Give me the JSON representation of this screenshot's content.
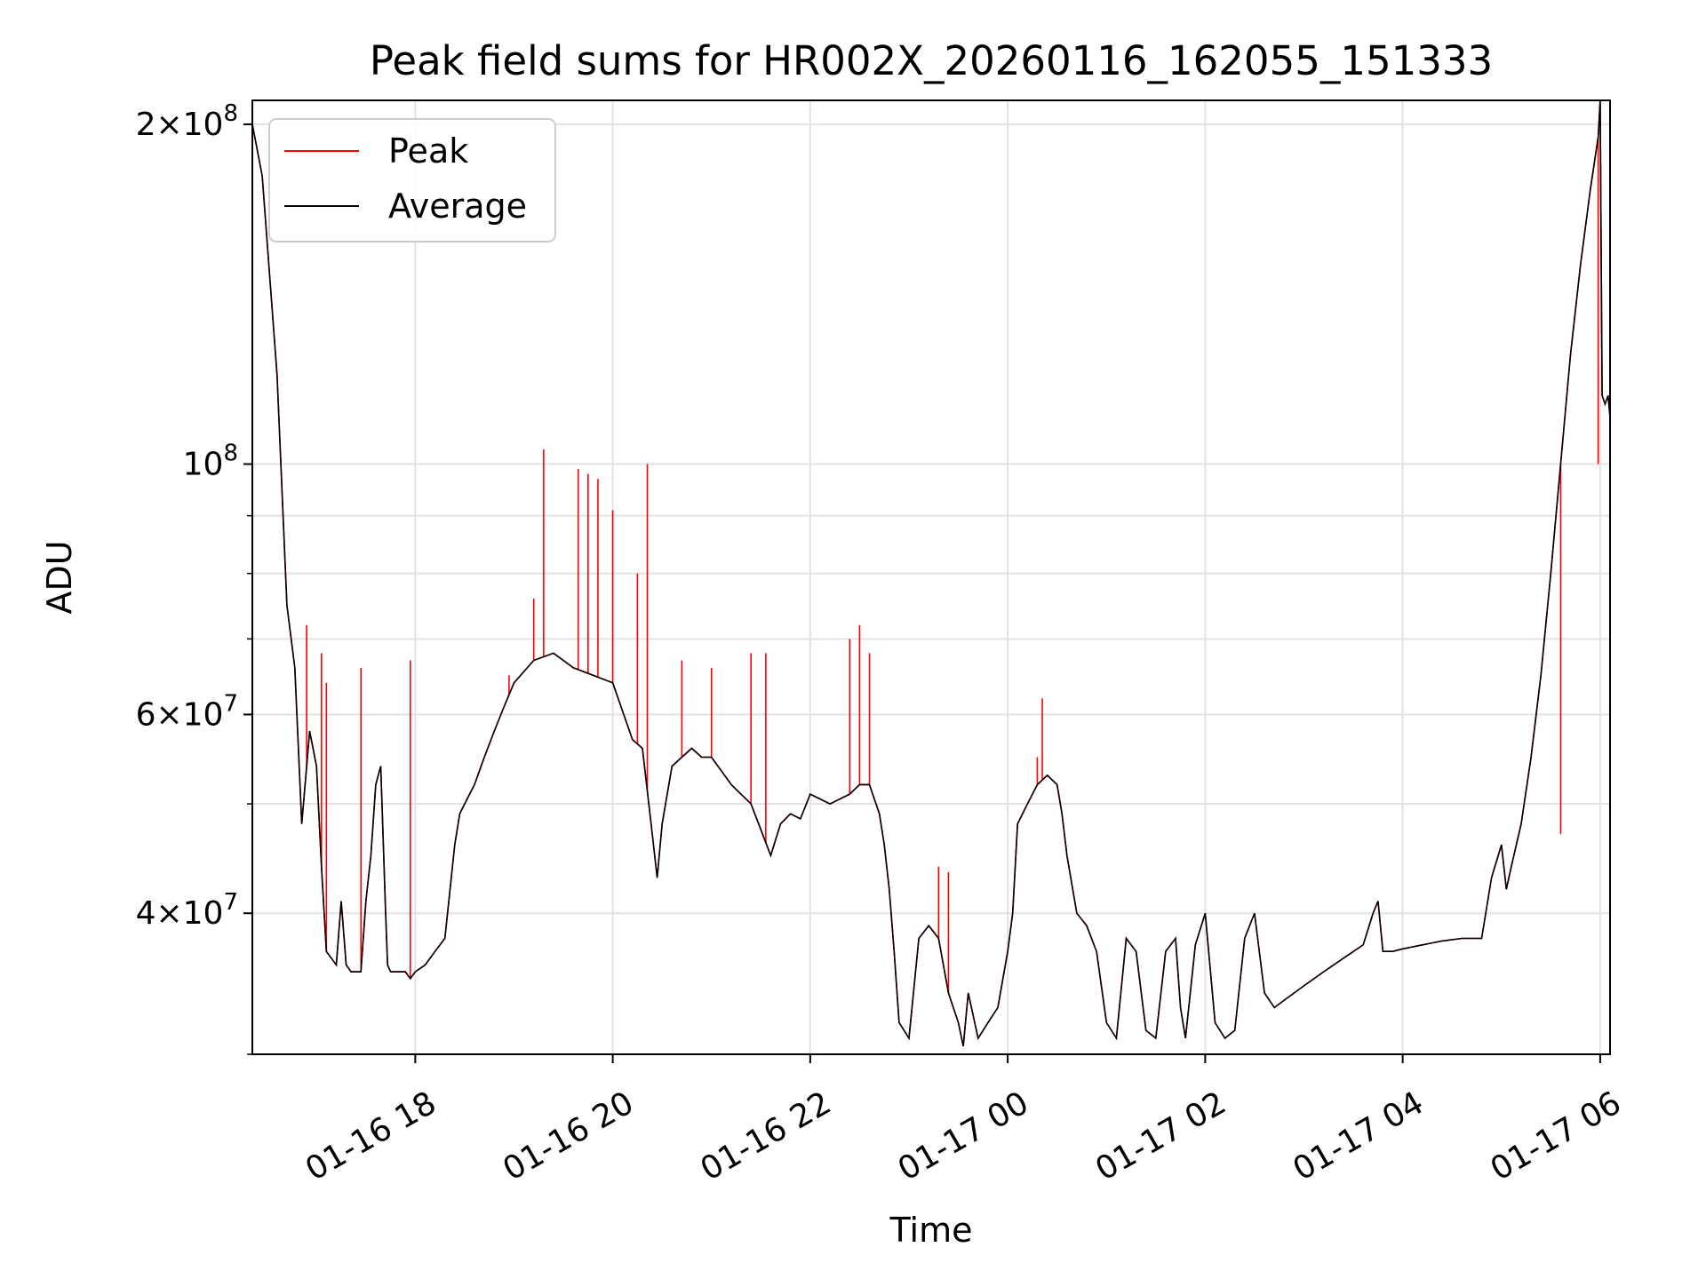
{
  "chart_data": {
    "type": "line",
    "title": "Peak field sums for HR002X_20260116_162055_151333",
    "xlabel": "Time",
    "ylabel": "ADU",
    "yscale": "log",
    "ylim": [
      30000000,
      210000000
    ],
    "xlim_hours": [
      16.35,
      30.1
    ],
    "grid": true,
    "legend": {
      "position": "top-left",
      "entries": [
        "Peak",
        "Average"
      ]
    },
    "x_ticks": [
      {
        "hour": 18,
        "label": "01-16 18"
      },
      {
        "hour": 20,
        "label": "01-16 20"
      },
      {
        "hour": 22,
        "label": "01-16 22"
      },
      {
        "hour": 24,
        "label": "01-17 00"
      },
      {
        "hour": 26,
        "label": "01-17 02"
      },
      {
        "hour": 28,
        "label": "01-17 04"
      },
      {
        "hour": 30,
        "label": "01-17 06"
      }
    ],
    "y_major_ticks": [
      {
        "value": 40000000,
        "mant": "4",
        "exp": "7"
      },
      {
        "value": 60000000,
        "mant": "6",
        "exp": "7"
      },
      {
        "value": 100000000,
        "mant": "",
        "exp": "8"
      },
      {
        "value": 200000000,
        "mant": "2",
        "exp": "8"
      }
    ],
    "y_minor_ticks": [
      30000000,
      50000000,
      70000000,
      80000000,
      90000000
    ],
    "series": [
      {
        "name": "Average",
        "color": "#000000",
        "x_hours": [
          16.35,
          16.45,
          16.6,
          16.7,
          16.78,
          16.85,
          16.93,
          17.0,
          17.05,
          17.1,
          17.15,
          17.2,
          17.25,
          17.3,
          17.35,
          17.45,
          17.5,
          17.55,
          17.6,
          17.65,
          17.7,
          17.72,
          17.75,
          17.8,
          17.9,
          17.95,
          18.0,
          18.1,
          18.2,
          18.3,
          18.4,
          18.45,
          18.5,
          18.6,
          18.7,
          18.8,
          18.9,
          19.0,
          19.2,
          19.4,
          19.6,
          19.8,
          20.0,
          20.2,
          20.3,
          20.4,
          20.45,
          20.5,
          20.6,
          20.7,
          20.8,
          20.9,
          21.0,
          21.2,
          21.4,
          21.6,
          21.7,
          21.8,
          21.9,
          22.0,
          22.2,
          22.4,
          22.5,
          22.6,
          22.7,
          22.75,
          22.8,
          22.85,
          22.9,
          23.0,
          23.1,
          23.2,
          23.3,
          23.4,
          23.5,
          23.55,
          23.6,
          23.7,
          23.8,
          23.9,
          24.0,
          24.05,
          24.1,
          24.2,
          24.3,
          24.4,
          24.5,
          24.55,
          24.6,
          24.7,
          24.8,
          24.9,
          25.0,
          25.1,
          25.2,
          25.3,
          25.4,
          25.5,
          25.6,
          25.7,
          25.75,
          25.8,
          25.9,
          26.0,
          26.1,
          26.2,
          26.3,
          26.4,
          26.5,
          26.6,
          26.7,
          26.8,
          27.0,
          27.2,
          27.4,
          27.6,
          27.7,
          27.75,
          27.8,
          27.9,
          28.0,
          28.2,
          28.4,
          28.6,
          28.8,
          28.9,
          29.0,
          29.05,
          29.1,
          29.2,
          29.3,
          29.4,
          29.5,
          29.6,
          29.7,
          29.8,
          29.9,
          29.98,
          30.0,
          30.02,
          30.05,
          30.08,
          30.1
        ],
        "values": [
          200000000,
          180000000,
          120000000,
          75000000,
          66000000,
          48000000,
          58000000,
          54000000,
          44000000,
          37000000,
          36500000,
          36000000,
          41000000,
          36000000,
          35500000,
          35500000,
          41000000,
          45000000,
          52000000,
          54000000,
          40000000,
          36000000,
          35500000,
          35500000,
          35500000,
          35000000,
          35500000,
          36000000,
          37000000,
          38000000,
          46000000,
          49000000,
          50000000,
          52000000,
          55000000,
          58000000,
          61000000,
          64000000,
          67000000,
          68000000,
          66000000,
          65000000,
          64000000,
          57000000,
          56000000,
          47000000,
          43000000,
          48000000,
          54000000,
          55000000,
          56000000,
          55000000,
          55000000,
          52000000,
          50000000,
          45000000,
          48000000,
          49000000,
          48500000,
          51000000,
          50000000,
          51000000,
          52000000,
          52000000,
          49000000,
          46000000,
          42000000,
          37000000,
          32000000,
          31000000,
          38000000,
          39000000,
          38000000,
          34000000,
          32000000,
          30500000,
          34000000,
          31000000,
          32000000,
          33000000,
          37000000,
          40000000,
          48000000,
          50000000,
          52000000,
          53000000,
          52000000,
          49000000,
          45000000,
          40000000,
          39000000,
          37000000,
          32000000,
          31000000,
          38000000,
          37000000,
          31500000,
          31000000,
          37000000,
          38000000,
          33000000,
          31000000,
          37500000,
          40000000,
          32000000,
          31000000,
          31500000,
          38000000,
          40000000,
          34000000,
          33000000,
          33500000,
          34500000,
          35500000,
          36500000,
          37500000,
          40000000,
          41000000,
          37000000,
          37000000,
          37200000,
          37500000,
          37800000,
          38000000,
          38000000,
          43000000,
          46000000,
          42000000,
          44000000,
          48000000,
          55000000,
          65000000,
          80000000,
          100000000,
          125000000,
          150000000,
          175000000,
          195000000,
          210000000,
          115000000,
          113000000,
          115000000,
          110000000
        ]
      },
      {
        "name": "Peak",
        "color": "#ff0000",
        "spikes": [
          {
            "hour": 16.9,
            "value": 72000000
          },
          {
            "hour": 17.05,
            "value": 68000000
          },
          {
            "hour": 17.1,
            "value": 64000000
          },
          {
            "hour": 17.45,
            "value": 66000000
          },
          {
            "hour": 17.95,
            "value": 67000000
          },
          {
            "hour": 18.4,
            "value": 46000000
          },
          {
            "hour": 18.95,
            "value": 65000000
          },
          {
            "hour": 19.2,
            "value": 76000000
          },
          {
            "hour": 19.3,
            "value": 103000000
          },
          {
            "hour": 19.65,
            "value": 99000000
          },
          {
            "hour": 19.75,
            "value": 98000000
          },
          {
            "hour": 19.85,
            "value": 97000000
          },
          {
            "hour": 20.0,
            "value": 91000000
          },
          {
            "hour": 20.25,
            "value": 80000000
          },
          {
            "hour": 20.35,
            "value": 100000000
          },
          {
            "hour": 20.7,
            "value": 67000000
          },
          {
            "hour": 21.0,
            "value": 66000000
          },
          {
            "hour": 21.4,
            "value": 68000000
          },
          {
            "hour": 21.55,
            "value": 68000000
          },
          {
            "hour": 22.4,
            "value": 70000000
          },
          {
            "hour": 22.5,
            "value": 72000000
          },
          {
            "hour": 22.6,
            "value": 68000000
          },
          {
            "hour": 23.3,
            "value": 44000000
          },
          {
            "hour": 23.4,
            "value": 43500000
          },
          {
            "hour": 24.35,
            "value": 62000000
          },
          {
            "hour": 24.3,
            "value": 55000000
          },
          {
            "hour": 29.6,
            "value": 47000000
          },
          {
            "hour": 29.98,
            "value": 100000000
          }
        ]
      }
    ]
  }
}
